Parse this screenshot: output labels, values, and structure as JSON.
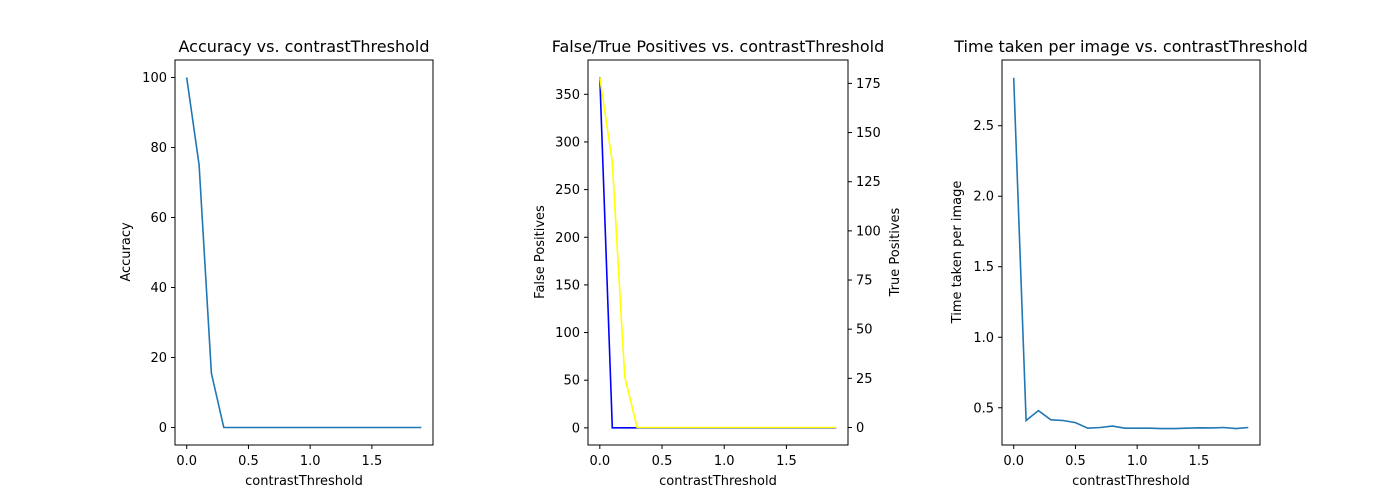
{
  "chart_data": [
    {
      "type": "line",
      "title": "Accuracy vs. contrastThreshold",
      "xlabel": "contrastThreshold",
      "ylabel": "Accuracy",
      "xlim": [
        -0.095,
        1.995
      ],
      "ylim": [
        -5,
        105
      ],
      "xticks": [
        "0.0",
        "0.5",
        "1.0",
        "1.5"
      ],
      "yticks": [
        "0",
        "20",
        "40",
        "60",
        "80",
        "100"
      ],
      "grid": false,
      "series": [
        {
          "color": "#1f77b4",
          "x": [
            0.0,
            0.1,
            0.2,
            0.3,
            0.4,
            0.5,
            0.6,
            0.7,
            0.8,
            0.9,
            1.0,
            1.1,
            1.2,
            1.3,
            1.4,
            1.5,
            1.6,
            1.7,
            1.8,
            1.9
          ],
          "y": [
            100,
            75,
            15.5,
            0,
            0,
            0,
            0,
            0,
            0,
            0,
            0,
            0,
            0,
            0,
            0,
            0,
            0,
            0,
            0,
            0
          ]
        }
      ]
    },
    {
      "type": "line",
      "title": "False/True Positives vs. contrastThreshold",
      "xlabel": "contrastThreshold",
      "ylabel": "False Positives",
      "ylabel_color": "#0000ff",
      "y2label": "True Positives",
      "y2label_color": "#ffff00",
      "xlim": [
        -0.095,
        1.995
      ],
      "ylim": [
        -18,
        386
      ],
      "y2lim": [
        -8.9,
        186.9
      ],
      "xticks": [
        "0.0",
        "0.5",
        "1.0",
        "1.5"
      ],
      "yticks": [
        "0",
        "50",
        "100",
        "150",
        "200",
        "250",
        "300",
        "350"
      ],
      "y2ticks": [
        "0",
        "25",
        "50",
        "75",
        "100",
        "125",
        "150",
        "175"
      ],
      "grid": false,
      "series": [
        {
          "name": "False Positives",
          "axis": "left",
          "color": "#0000ff",
          "x": [
            0.0,
            0.1,
            0.2,
            0.3,
            0.4,
            0.5,
            0.6,
            0.7,
            0.8,
            0.9,
            1.0,
            1.1,
            1.2,
            1.3,
            1.4,
            1.5,
            1.6,
            1.7,
            1.8,
            1.9
          ],
          "y": [
            368,
            0,
            0,
            0,
            0,
            0,
            0,
            0,
            0,
            0,
            0,
            0,
            0,
            0,
            0,
            0,
            0,
            0,
            0,
            0
          ]
        },
        {
          "name": "True Positives",
          "axis": "right",
          "color": "#ffff00",
          "x": [
            0.0,
            0.1,
            0.2,
            0.3,
            0.4,
            0.5,
            0.6,
            0.7,
            0.8,
            0.9,
            1.0,
            1.1,
            1.2,
            1.3,
            1.4,
            1.5,
            1.6,
            1.7,
            1.8,
            1.9
          ],
          "y": [
            178,
            135,
            26,
            0,
            0,
            0,
            0,
            0,
            0,
            0,
            0,
            0,
            0,
            0,
            0,
            0,
            0,
            0,
            0,
            0
          ]
        }
      ]
    },
    {
      "type": "line",
      "title": "Time taken per image vs. contrastThreshold",
      "xlabel": "contrastThreshold",
      "ylabel": "Time taken per image",
      "xlim": [
        -0.095,
        1.995
      ],
      "ylim": [
        0.236,
        2.966
      ],
      "xticks": [
        "0.0",
        "0.5",
        "1.0",
        "1.5"
      ],
      "yticks": [
        "0.5",
        "1.0",
        "1.5",
        "2.0",
        "2.5"
      ],
      "grid": false,
      "series": [
        {
          "color": "#1f77b4",
          "x": [
            0.0,
            0.1,
            0.2,
            0.3,
            0.4,
            0.5,
            0.6,
            0.7,
            0.8,
            0.9,
            1.0,
            1.1,
            1.2,
            1.3,
            1.4,
            1.5,
            1.6,
            1.7,
            1.8,
            1.9
          ],
          "y": [
            2.84,
            0.41,
            0.48,
            0.415,
            0.41,
            0.395,
            0.355,
            0.36,
            0.37,
            0.355,
            0.355,
            0.355,
            0.352,
            0.352,
            0.355,
            0.358,
            0.357,
            0.36,
            0.352,
            0.36
          ]
        }
      ]
    }
  ]
}
